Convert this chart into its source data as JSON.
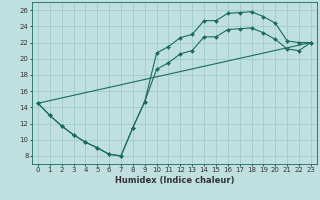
{
  "xlabel": "Humidex (Indice chaleur)",
  "background_color": "#c0e0e0",
  "grid_color": "#a0cccc",
  "line_color": "#1a6b5a",
  "xlim": [
    -0.5,
    23.5
  ],
  "ylim": [
    7,
    27
  ],
  "xticks": [
    0,
    1,
    2,
    3,
    4,
    5,
    6,
    7,
    8,
    9,
    10,
    11,
    12,
    13,
    14,
    15,
    16,
    17,
    18,
    19,
    20,
    21,
    22,
    23
  ],
  "yticks": [
    8,
    10,
    12,
    14,
    16,
    18,
    20,
    22,
    24,
    26
  ],
  "line1_x": [
    0,
    1,
    2,
    3,
    4,
    5,
    6,
    7,
    8,
    9,
    10,
    11,
    12,
    13,
    14,
    15,
    16,
    17,
    18,
    19,
    20,
    21,
    22,
    23
  ],
  "line1_y": [
    14.5,
    13.0,
    11.7,
    10.6,
    9.7,
    9.0,
    8.2,
    8.0,
    11.5,
    14.7,
    20.7,
    21.5,
    22.6,
    23.0,
    24.7,
    24.7,
    25.6,
    25.7,
    25.8,
    25.2,
    24.4,
    22.2,
    22.0,
    22.0
  ],
  "line2_x": [
    0,
    1,
    2,
    3,
    4,
    5,
    6,
    7,
    8,
    9,
    10,
    11,
    12,
    13,
    14,
    15,
    16,
    17,
    18,
    19,
    20,
    21,
    22,
    23
  ],
  "line2_y": [
    14.5,
    13.0,
    11.7,
    10.6,
    9.7,
    9.0,
    8.2,
    8.0,
    11.5,
    14.7,
    18.7,
    19.5,
    20.6,
    21.0,
    22.7,
    22.7,
    23.6,
    23.7,
    23.8,
    23.2,
    22.4,
    21.2,
    21.0,
    22.0
  ],
  "line3_x": [
    0,
    23
  ],
  "line3_y": [
    14.5,
    22.0
  ],
  "xlabel_fontsize": 6,
  "tick_fontsize": 5,
  "linewidth": 0.8,
  "markersize": 2.0
}
